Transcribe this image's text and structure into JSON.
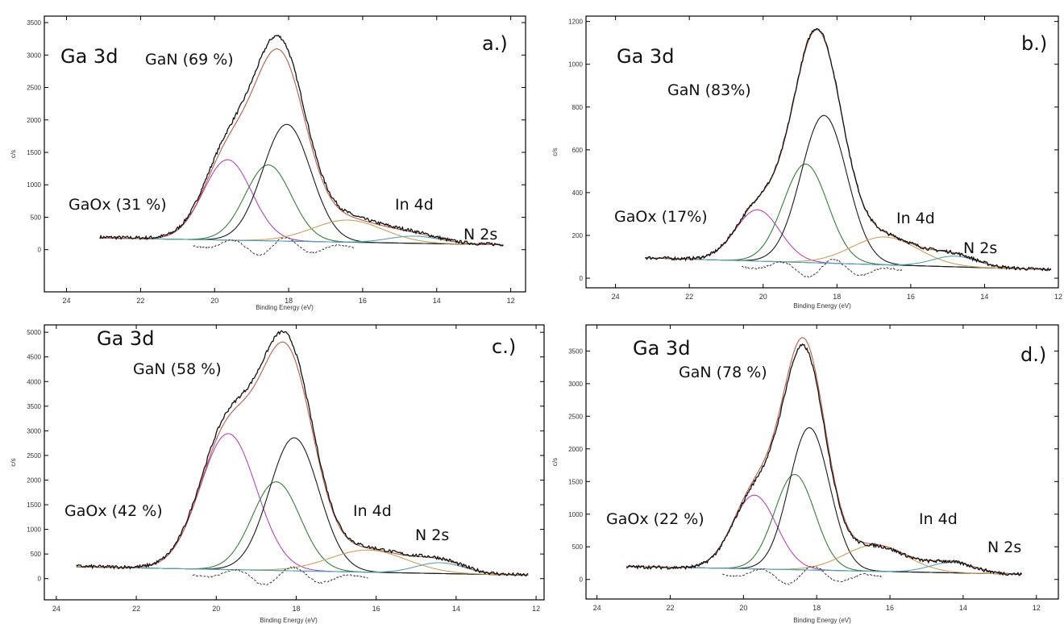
{
  "chart_data": [
    {
      "type": "line",
      "panel_label": "a.)",
      "xlabel": "Binding Energy (eV)",
      "ylabel": "c/s",
      "xlim": [
        24.6,
        11.6
      ],
      "ylim": [
        -650,
        3600
      ],
      "x_ticks": [
        24,
        22,
        20,
        18,
        16,
        14,
        12
      ],
      "y_ticks": [
        0,
        500,
        1000,
        1500,
        2000,
        2500,
        3000,
        3500
      ],
      "annotations": {
        "core": "Ga 3d",
        "main_peak": "GaN (69 %)",
        "oxide_peak": "GaOx (31 %)",
        "in4d": "In 4d",
        "n2s": "N 2s"
      },
      "data_range": [
        23.1,
        12.2
      ],
      "baseline": [
        [
          23.1,
          180
        ],
        [
          12.2,
          75
        ]
      ],
      "peaks": [
        {
          "center": 19.65,
          "height": 1240,
          "width": 0.65
        },
        {
          "center": 18.55,
          "height": 1170,
          "width": 0.62
        },
        {
          "center": 18.05,
          "height": 1800,
          "width": 0.65
        },
        {
          "center": 16.4,
          "height": 340,
          "width": 0.95
        },
        {
          "center": 14.6,
          "height": 110,
          "width": 0.7
        }
      ],
      "experimental_peak": 3330
    },
    {
      "type": "line",
      "panel_label": "b.)",
      "xlabel": "Binding Energy (eV)",
      "ylabel": "c/s",
      "xlim": [
        24.8,
        12.0
      ],
      "ylim": [
        -45,
        1225
      ],
      "x_ticks": [
        24,
        22,
        20,
        18,
        16,
        14,
        12
      ],
      "y_ticks": [
        0,
        200,
        400,
        600,
        800,
        1000,
        1200
      ],
      "annotations": {
        "core": "Ga 3d",
        "main_peak": "GaN (83%)",
        "oxide_peak": "GaOx (17%)",
        "in4d": "In 4d",
        "n2s": "N 2s"
      },
      "data_range": [
        23.2,
        12.2
      ],
      "baseline": [
        [
          23.2,
          95
        ],
        [
          12.2,
          40
        ]
      ],
      "peaks": [
        {
          "center": 20.15,
          "height": 240,
          "width": 0.6
        },
        {
          "center": 18.85,
          "height": 460,
          "width": 0.6
        },
        {
          "center": 18.35,
          "height": 690,
          "width": 0.62
        },
        {
          "center": 16.7,
          "height": 130,
          "width": 0.9
        },
        {
          "center": 14.8,
          "height": 50,
          "width": 0.6
        }
      ],
      "experimental_peak": 1180
    },
    {
      "type": "line",
      "panel_label": "c.)",
      "xlabel": "Binding Energy (eV)",
      "ylabel": "c/s",
      "xlim": [
        24.3,
        11.8
      ],
      "ylim": [
        -430,
        5150
      ],
      "x_ticks": [
        24,
        22,
        20,
        18,
        16,
        14,
        12
      ],
      "y_ticks": [
        0,
        500,
        1000,
        1500,
        2000,
        2500,
        3000,
        3500,
        4000,
        4500,
        5000
      ],
      "annotations": {
        "core": "Ga 3d",
        "main_peak": "GaN (58 %)",
        "oxide_peak": "GaOx (42 %)",
        "in4d": "In 4d",
        "n2s": "N 2s"
      },
      "data_range": [
        23.5,
        12.2
      ],
      "baseline": [
        [
          23.5,
          240
        ],
        [
          12.2,
          70
        ]
      ],
      "peaks": [
        {
          "center": 19.7,
          "height": 2760,
          "width": 0.7
        },
        {
          "center": 18.5,
          "height": 1800,
          "width": 0.6
        },
        {
          "center": 18.05,
          "height": 2700,
          "width": 0.62
        },
        {
          "center": 16.2,
          "height": 450,
          "width": 0.95
        },
        {
          "center": 14.4,
          "height": 220,
          "width": 0.6
        }
      ],
      "experimental_peak": 5060
    },
    {
      "type": "line",
      "panel_label": "d.)",
      "xlabel": "Binding Energy (eV)",
      "ylabel": "c/s",
      "xlim": [
        24.3,
        11.4
      ],
      "ylim": [
        -300,
        3900
      ],
      "x_ticks": [
        24,
        22,
        20,
        18,
        16,
        14,
        12
      ],
      "y_ticks": [
        0,
        500,
        1000,
        1500,
        2000,
        2500,
        3000,
        3500
      ],
      "annotations": {
        "core": "Ga 3d",
        "main_peak": "GaN (78 %)",
        "oxide_peak": "GaOx (22 %)",
        "in4d": "In 4d",
        "n2s": "N 2s"
      },
      "data_range": [
        23.2,
        12.4
      ],
      "baseline": [
        [
          23.2,
          200
        ],
        [
          12.4,
          80
        ]
      ],
      "peaks": [
        {
          "center": 19.7,
          "height": 1130,
          "width": 0.6
        },
        {
          "center": 18.6,
          "height": 1460,
          "width": 0.55
        },
        {
          "center": 18.2,
          "height": 2180,
          "width": 0.55
        },
        {
          "center": 16.4,
          "height": 400,
          "width": 0.85
        },
        {
          "center": 14.3,
          "height": 160,
          "width": 0.6
        }
      ],
      "experimental_peak": 3620
    }
  ],
  "colors": {
    "experimental": "#111111",
    "envelope": "#b5604a",
    "gaox": "#b04ab8",
    "gan_a": "#3a7d3a",
    "gan_b": "#1a1a1a",
    "in4d": "#c8a060",
    "n2s": "#5aa0b5",
    "baseline": "#3aa0a8",
    "residual": "#4a3a3a"
  }
}
